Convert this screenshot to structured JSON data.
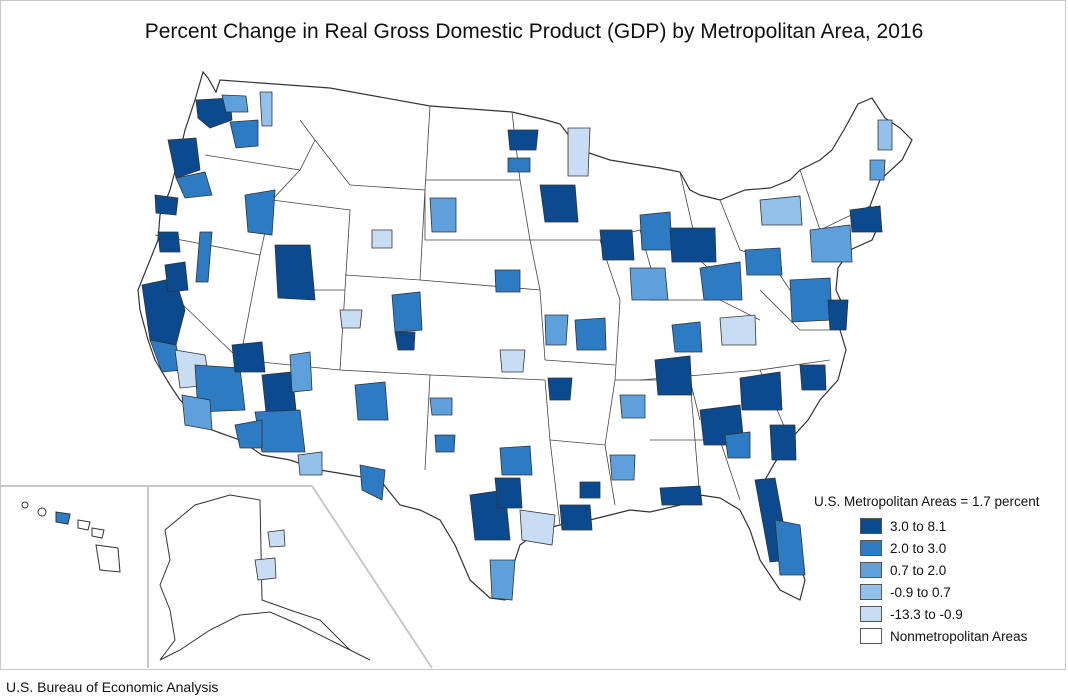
{
  "title": "Percent Change in Real Gross Domestic Product (GDP) by Metropolitan Area, 2016",
  "source": "U.S. Bureau of Economic Analysis",
  "legend": {
    "title": "U.S. Metropolitan Areas = 1.7 percent",
    "items": [
      {
        "label": "3.0 to 8.1",
        "color": "#0b4a8f"
      },
      {
        "label": "2.0 to 3.0",
        "color": "#2d7cc3"
      },
      {
        "label": "0.7 to 2.0",
        "color": "#5ea0db"
      },
      {
        "label": "-0.9 to 0.7",
        "color": "#94c1ea"
      },
      {
        "label": "-13.3 to -0.9",
        "color": "#c8ddf3"
      },
      {
        "label": "Nonmetropolitan Areas",
        "color": "#ffffff"
      }
    ]
  },
  "map": {
    "border_color": "#333333",
    "nonmetro_fill": "#ffffff",
    "insets": [
      "alaska",
      "hawaii"
    ]
  }
}
